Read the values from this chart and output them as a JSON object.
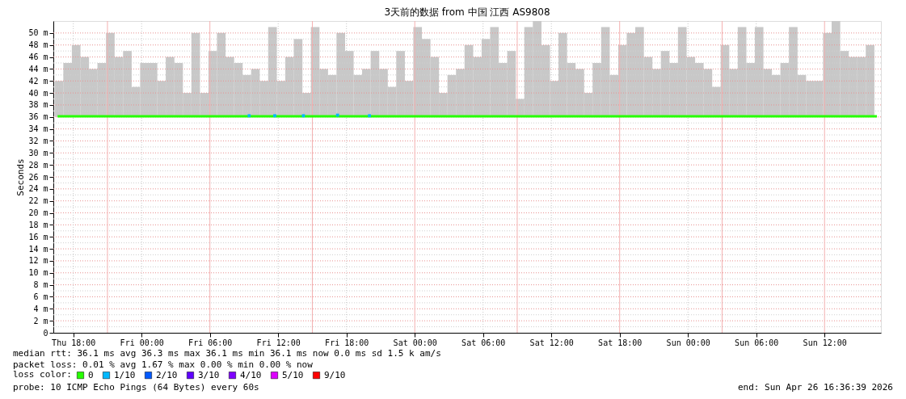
{
  "chart_data": {
    "type": "bar",
    "title": "3天前的数据 from 中国 江西 AS9808",
    "ylabel": "Seconds",
    "x": [
      "2026-04-23T16:45",
      "2026-04-23T17:30",
      "2026-04-23T18:15",
      "2026-04-23T19:00",
      "2026-04-23T19:45",
      "2026-04-23T20:30",
      "2026-04-23T21:15",
      "2026-04-23T22:00",
      "2026-04-23T22:45",
      "2026-04-23T23:30",
      "2026-04-24T00:15",
      "2026-04-24T01:00",
      "2026-04-24T01:45",
      "2026-04-24T02:30",
      "2026-04-24T03:15",
      "2026-04-24T04:00",
      "2026-04-24T04:45",
      "2026-04-24T05:30",
      "2026-04-24T06:15",
      "2026-04-24T07:00",
      "2026-04-24T07:45",
      "2026-04-24T08:30",
      "2026-04-24T09:15",
      "2026-04-24T10:00",
      "2026-04-24T10:45",
      "2026-04-24T11:30",
      "2026-04-24T12:15",
      "2026-04-24T13:00",
      "2026-04-24T13:45",
      "2026-04-24T14:30",
      "2026-04-24T15:15",
      "2026-04-24T16:00",
      "2026-04-24T16:45",
      "2026-04-24T17:30",
      "2026-04-24T18:15",
      "2026-04-24T19:00",
      "2026-04-24T19:45",
      "2026-04-24T20:30",
      "2026-04-24T21:15",
      "2026-04-24T22:00",
      "2026-04-24T22:45",
      "2026-04-24T23:30",
      "2026-04-25T00:15",
      "2026-04-25T01:00",
      "2026-04-25T01:45",
      "2026-04-25T02:30",
      "2026-04-25T03:15",
      "2026-04-25T04:00",
      "2026-04-25T04:45",
      "2026-04-25T05:30",
      "2026-04-25T06:15",
      "2026-04-25T07:00",
      "2026-04-25T07:45",
      "2026-04-25T08:30",
      "2026-04-25T09:15",
      "2026-04-25T10:00",
      "2026-04-25T10:45",
      "2026-04-25T11:30",
      "2026-04-25T12:15",
      "2026-04-25T13:00",
      "2026-04-25T13:45",
      "2026-04-25T14:30",
      "2026-04-25T15:15",
      "2026-04-25T16:00",
      "2026-04-25T16:45",
      "2026-04-25T17:30",
      "2026-04-25T18:15",
      "2026-04-25T19:00",
      "2026-04-25T19:45",
      "2026-04-25T20:30",
      "2026-04-25T21:15",
      "2026-04-25T22:00",
      "2026-04-25T22:45",
      "2026-04-25T23:30",
      "2026-04-26T00:15",
      "2026-04-26T01:00",
      "2026-04-26T01:45",
      "2026-04-26T02:30",
      "2026-04-26T03:15",
      "2026-04-26T04:00",
      "2026-04-26T04:45",
      "2026-04-26T05:30",
      "2026-04-26T06:15",
      "2026-04-26T07:00",
      "2026-04-26T07:45",
      "2026-04-26T08:30",
      "2026-04-26T09:15",
      "2026-04-26T10:00",
      "2026-04-26T10:45",
      "2026-04-26T11:30",
      "2026-04-26T12:15",
      "2026-04-26T13:00",
      "2026-04-26T13:45",
      "2026-04-26T14:30",
      "2026-04-26T15:15",
      "2026-04-26T16:00"
    ],
    "series": [
      {
        "color": "#c8c8c8",
        "base": [
          36,
          36,
          36,
          36,
          36,
          36,
          36,
          36,
          36,
          36,
          36,
          36,
          36,
          36,
          36,
          36,
          36,
          36,
          36,
          36,
          36,
          36,
          36,
          36,
          36,
          36,
          36,
          36,
          36,
          36,
          36,
          36,
          36,
          36,
          36,
          36,
          36,
          36,
          36,
          36,
          36,
          36,
          36,
          36,
          36,
          36,
          36,
          36,
          36,
          36,
          36,
          36,
          36,
          36,
          36,
          36,
          36,
          36,
          36,
          36,
          36,
          36,
          36,
          36,
          36,
          36,
          36,
          36,
          36,
          36,
          36,
          36,
          36,
          36,
          36,
          36,
          36,
          36,
          36,
          36,
          36,
          36,
          36,
          36,
          36,
          36,
          36,
          36,
          36,
          36,
          36,
          36,
          36,
          36,
          36,
          36
        ],
        "values": [
          6,
          9,
          12,
          10,
          8,
          9,
          14,
          10,
          11,
          5,
          9,
          9,
          6,
          10,
          9,
          4,
          14,
          4,
          11,
          14,
          10,
          9,
          7,
          8,
          6,
          15,
          6,
          10,
          13,
          4,
          15,
          8,
          7,
          14,
          11,
          7,
          8,
          11,
          8,
          5,
          11,
          6,
          15,
          13,
          10,
          4,
          7,
          8,
          12,
          10,
          13,
          15,
          9,
          11,
          3,
          15,
          16,
          12,
          6,
          14,
          9,
          8,
          4,
          9,
          15,
          7,
          12,
          14,
          15,
          10,
          8,
          11,
          9,
          15,
          10,
          9,
          8,
          5,
          12,
          8,
          15,
          9,
          15,
          8,
          7,
          9,
          15,
          7,
          6,
          6,
          14,
          16,
          11,
          10,
          10,
          12
        ]
      },
      {
        "name": "0",
        "type": "line",
        "color": "#26ff00",
        "x": [
          "2026-04-23T16:37",
          "2026-04-24T04:00",
          "2026-04-24T16:00",
          "2026-04-25T04:00",
          "2026-04-25T16:00",
          "2026-04-26T04:00",
          "2026-04-26T16:36"
        ],
        "values": [
          36.1,
          36.1,
          36.1,
          36.1,
          36.1,
          36.1,
          36.1
        ]
      },
      {
        "name": "1/10",
        "type": "scatter",
        "color": "#00b8ff",
        "x": [
          "2026-04-24T09:27",
          "2026-04-24T11:42",
          "2026-04-24T14:13",
          "2026-04-24T17:13",
          "2026-04-24T20:01"
        ],
        "values": [
          36.2,
          36.2,
          36.2,
          36.3,
          36.2
        ]
      },
      {
        "name": "2/10",
        "type": "scatter",
        "color": "#0059ff",
        "values": [
          null,
          null,
          null,
          null,
          null,
          null,
          null,
          null,
          null,
          null,
          null,
          null,
          null,
          null,
          null,
          null,
          null,
          null,
          null,
          null,
          null,
          null,
          null,
          null,
          null,
          null,
          null,
          null,
          null,
          null,
          null,
          null,
          null,
          null,
          null,
          null,
          null,
          null,
          null,
          null,
          null,
          null,
          null,
          null,
          null,
          null,
          null,
          null,
          null,
          null,
          null,
          null,
          null,
          null,
          null,
          null,
          null,
          null,
          null,
          null,
          null,
          null,
          null,
          null,
          null,
          null,
          null,
          null,
          null,
          null,
          null,
          null,
          null,
          null,
          null,
          null,
          null,
          null,
          null,
          null,
          null,
          null,
          null,
          null,
          null,
          null,
          null,
          null,
          null,
          null,
          null,
          null,
          null,
          null,
          null,
          null
        ]
      },
      {
        "name": "3/10",
        "type": "scatter",
        "color": "#5e00ff",
        "values": [
          null,
          null,
          null,
          null,
          null,
          null,
          null,
          null,
          null,
          null,
          null,
          null,
          null,
          null,
          null,
          null,
          null,
          null,
          null,
          null,
          null,
          null,
          null,
          null,
          null,
          null,
          null,
          null,
          null,
          null,
          null,
          null,
          null,
          null,
          null,
          null,
          null,
          null,
          null,
          null,
          null,
          null,
          null,
          null,
          null,
          null,
          null,
          null,
          null,
          null,
          null,
          null,
          null,
          null,
          null,
          null,
          null,
          null,
          null,
          null,
          null,
          null,
          null,
          null,
          null,
          null,
          null,
          null,
          null,
          null,
          null,
          null,
          null,
          null,
          null,
          null,
          null,
          null,
          null,
          null,
          null,
          null,
          null,
          null,
          null,
          null,
          null,
          null,
          null,
          null,
          null,
          null,
          null,
          null,
          null,
          null
        ]
      },
      {
        "name": "4/10",
        "type": "scatter",
        "color": "#7e00ff",
        "values": [
          null,
          null,
          null,
          null,
          null,
          null,
          null,
          null,
          null,
          null,
          null,
          null,
          null,
          null,
          null,
          null,
          null,
          null,
          null,
          null,
          null,
          null,
          null,
          null,
          null,
          null,
          null,
          null,
          null,
          null,
          null,
          null,
          null,
          null,
          null,
          null,
          null,
          null,
          null,
          null,
          null,
          null,
          null,
          null,
          null,
          null,
          null,
          null,
          null,
          null,
          null,
          null,
          null,
          null,
          null,
          null,
          null,
          null,
          null,
          null,
          null,
          null,
          null,
          null,
          null,
          null,
          null,
          null,
          null,
          null,
          null,
          null,
          null,
          null,
          null,
          null,
          null,
          null,
          null,
          null,
          null,
          null,
          null,
          null,
          null,
          null,
          null,
          null,
          null,
          null,
          null,
          null,
          null,
          null,
          null,
          null
        ]
      },
      {
        "name": "5/10",
        "type": "scatter",
        "color": "#dd00ff",
        "values": [
          null,
          null,
          null,
          null,
          null,
          null,
          null,
          null,
          null,
          null,
          null,
          null,
          null,
          null,
          null,
          null,
          null,
          null,
          null,
          null,
          null,
          null,
          null,
          null,
          null,
          null,
          null,
          null,
          null,
          null,
          null,
          null,
          null,
          null,
          null,
          null,
          null,
          null,
          null,
          null,
          null,
          null,
          null,
          null,
          null,
          null,
          null,
          null,
          null,
          null,
          null,
          null,
          null,
          null,
          null,
          null,
          null,
          null,
          null,
          null,
          null,
          null,
          null,
          null,
          null,
          null,
          null,
          null,
          null,
          null,
          null,
          null,
          null,
          null,
          null,
          null,
          null,
          null,
          null,
          null,
          null,
          null,
          null,
          null,
          null,
          null,
          null,
          null,
          null,
          null,
          null,
          null,
          null,
          null,
          null,
          null
        ]
      },
      {
        "name": "9/10",
        "type": "scatter",
        "color": "#ff0000",
        "values": [
          null,
          null,
          null,
          null,
          null,
          null,
          null,
          null,
          null,
          null,
          null,
          null,
          null,
          null,
          null,
          null,
          null,
          null,
          null,
          null,
          null,
          null,
          null,
          null,
          null,
          null,
          null,
          null,
          null,
          null,
          null,
          null,
          null,
          null,
          null,
          null,
          null,
          null,
          null,
          null,
          null,
          null,
          null,
          null,
          null,
          null,
          null,
          null,
          null,
          null,
          null,
          null,
          null,
          null,
          null,
          null,
          null,
          null,
          null,
          null,
          null,
          null,
          null,
          null,
          null,
          null,
          null,
          null,
          null,
          null,
          null,
          null,
          null,
          null,
          null,
          null,
          null,
          null,
          null,
          null,
          null,
          null,
          null,
          null,
          null,
          null,
          null,
          null,
          null,
          null,
          null,
          null,
          null,
          null,
          null,
          null
        ]
      }
    ],
    "xlim": [
      "2026-04-23T16:36",
      "2026-04-26T16:36"
    ],
    "xticks": [
      {
        "value": "2026-04-23T18:00",
        "label": "Thu 18:00"
      },
      {
        "value": "2026-04-24T00:00",
        "label": "Fri 00:00"
      },
      {
        "value": "2026-04-24T06:00",
        "label": "Fri 06:00"
      },
      {
        "value": "2026-04-24T12:00",
        "label": "Fri 12:00"
      },
      {
        "value": "2026-04-24T18:00",
        "label": "Fri 18:00"
      },
      {
        "value": "2026-04-25T00:00",
        "label": "Sat 00:00"
      },
      {
        "value": "2026-04-25T06:00",
        "label": "Sat 06:00"
      },
      {
        "value": "2026-04-25T12:00",
        "label": "Sat 12:00"
      },
      {
        "value": "2026-04-25T18:00",
        "label": "Sat 18:00"
      },
      {
        "value": "2026-04-26T00:00",
        "label": "Sun 00:00"
      },
      {
        "value": "2026-04-26T06:00",
        "label": "Sun 06:00"
      },
      {
        "value": "2026-04-26T12:00",
        "label": "Sun 12:00"
      }
    ],
    "ylim": [
      0,
      52
    ],
    "yticks": [
      0,
      {
        "value": 2,
        "label": "2 m"
      },
      {
        "value": 4,
        "label": "4 m"
      },
      {
        "value": 6,
        "label": "6 m"
      },
      {
        "value": 8,
        "label": "8 m"
      },
      {
        "value": 10,
        "label": "10 m"
      },
      {
        "value": 12,
        "label": "12 m"
      },
      {
        "value": 14,
        "label": "14 m"
      },
      {
        "value": 16,
        "label": "16 m"
      },
      {
        "value": 18,
        "label": "18 m"
      },
      {
        "value": 20,
        "label": "20 m"
      },
      {
        "value": 22,
        "label": "22 m"
      },
      {
        "value": 24,
        "label": "24 m"
      },
      {
        "value": 26,
        "label": "26 m"
      },
      {
        "value": 28,
        "label": "28 m"
      },
      {
        "value": 30,
        "label": "30 m"
      },
      {
        "value": 32,
        "label": "32 m"
      },
      {
        "value": 34,
        "label": "34 m"
      },
      {
        "value": 36,
        "label": "36 m"
      },
      {
        "value": 38,
        "label": "38 m"
      },
      {
        "value": 40,
        "label": "40 m"
      },
      {
        "value": 42,
        "label": "42 m"
      },
      {
        "value": 44,
        "label": "44 m"
      },
      {
        "value": 46,
        "label": "46 m"
      },
      {
        "value": 48,
        "label": "48 m"
      },
      {
        "value": 50,
        "label": "50 m"
      }
    ],
    "ref_lines": [
      {
        "axis": "x",
        "value": "2026-04-23T21:00",
        "color": "#f4b0b0"
      },
      {
        "axis": "x",
        "value": "2026-04-24T06:00",
        "color": "#f4b0b0"
      },
      {
        "axis": "x",
        "value": "2026-04-24T15:00",
        "color": "#f4b0b0"
      },
      {
        "axis": "x",
        "value": "2026-04-25T00:00",
        "color": "#f4b0b0"
      },
      {
        "axis": "x",
        "value": "2026-04-25T09:00",
        "color": "#f4b0b0"
      },
      {
        "axis": "x",
        "value": "2026-04-25T18:00",
        "color": "#f4b0b0"
      },
      {
        "axis": "x",
        "value": "2026-04-26T03:00",
        "color": "#f4b0b0"
      },
      {
        "axis": "x",
        "value": "2026-04-26T12:00",
        "color": "#f4b0b0"
      }
    ],
    "grid": true,
    "legend": "bottom",
    "legend_title": "loss color:",
    "annotations": [
      "median rtt:  36.1 ms avg  36.3 ms max  36.1 ms min  36.1 ms now  0.0 ms sd  1.5 k am/s",
      "packet loss: 0.01 % avg  1.67 % max  0.00 % min  0.00 % now",
      "probe:       10 ICMP Echo Pings (64 Bytes) every 60s",
      "end: Sun Apr 26 16:36:39 2026"
    ]
  }
}
